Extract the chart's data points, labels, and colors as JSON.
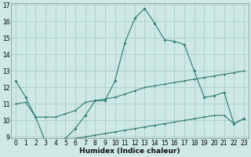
{
  "xlabel": "Humidex (Indice chaleur)",
  "x": [
    0,
    1,
    2,
    3,
    4,
    5,
    6,
    7,
    8,
    9,
    10,
    11,
    12,
    13,
    14,
    15,
    16,
    17,
    18,
    19,
    20,
    21,
    22,
    23
  ],
  "line1": [
    12.4,
    11.4,
    10.2,
    8.7,
    8.8,
    8.9,
    9.5,
    10.3,
    11.2,
    11.2,
    12.4,
    14.7,
    16.2,
    16.8,
    15.9,
    14.9,
    14.8,
    14.6,
    13.0,
    11.4,
    11.5,
    11.7,
    9.8,
    10.1
  ],
  "line2": [
    11.0,
    11.1,
    10.2,
    10.2,
    10.2,
    10.4,
    10.6,
    11.1,
    11.2,
    11.3,
    11.4,
    11.6,
    11.8,
    12.0,
    12.1,
    12.2,
    12.3,
    12.4,
    12.5,
    12.6,
    12.7,
    12.8,
    12.9,
    13.0
  ],
  "line3": [
    8.8,
    8.8,
    8.8,
    8.7,
    8.8,
    8.9,
    8.9,
    9.0,
    9.1,
    9.2,
    9.3,
    9.4,
    9.5,
    9.6,
    9.7,
    9.8,
    9.9,
    10.0,
    10.1,
    10.2,
    10.3,
    10.3,
    9.8,
    10.1
  ],
  "bg_color": "#cde8e5",
  "grid_color": "#a8ceca",
  "line_color": "#2d7a6e",
  "ylim": [
    9,
    17
  ],
  "xlim": [
    -0.5,
    23.5
  ],
  "yticks": [
    9,
    10,
    11,
    12,
    13,
    14,
    15,
    16,
    17
  ],
  "xticks": [
    0,
    1,
    2,
    3,
    4,
    5,
    6,
    7,
    8,
    9,
    10,
    11,
    12,
    13,
    14,
    15,
    16,
    17,
    18,
    19,
    20,
    21,
    22,
    23
  ],
  "tick_fontsize": 5.5,
  "xlabel_fontsize": 6.5
}
